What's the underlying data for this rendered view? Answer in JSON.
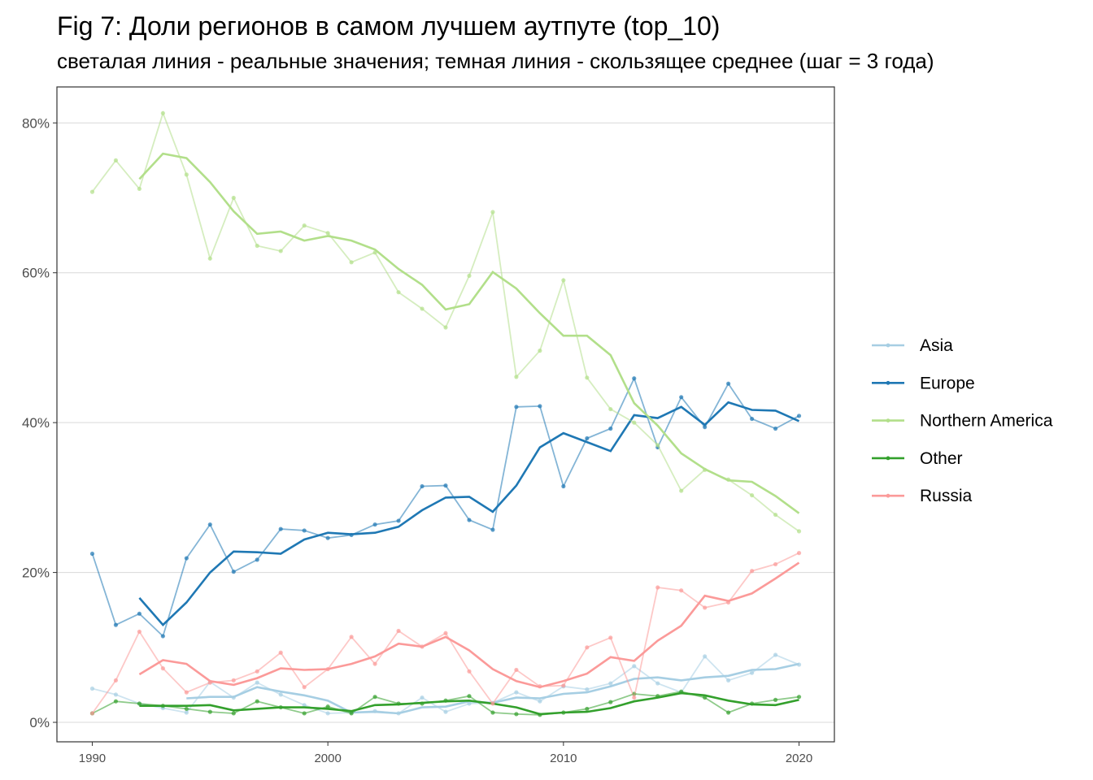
{
  "chart_data": {
    "type": "line",
    "title": "Fig 7: Доли регионов в самом лучшем аутпуте (top_10)",
    "subtitle": "светалая линия - реальные значения; темная линия - скользящее среднее (шаг = 3 года)",
    "xlim": [
      1988.5,
      2021.5
    ],
    "ylim": [
      -2.6,
      84.8
    ],
    "x_ticks": [
      1990,
      2000,
      2010,
      2020
    ],
    "x_tick_labels": [
      "1990",
      "2000",
      "2010",
      "2020"
    ],
    "y_ticks": [
      0,
      20,
      40,
      60,
      80
    ],
    "y_tick_labels": [
      "0%",
      "20%",
      "40%",
      "60%",
      "80%"
    ],
    "grid": true,
    "legend_position": "right",
    "years": [
      1990,
      1991,
      1992,
      1993,
      1994,
      1995,
      1996,
      1997,
      1998,
      1999,
      2000,
      2001,
      2002,
      2003,
      2004,
      2005,
      2006,
      2007,
      2008,
      2009,
      2010,
      2011,
      2012,
      2013,
      2014,
      2015,
      2016,
      2017,
      2018,
      2019,
      2020
    ],
    "series": [
      {
        "name": "Asia",
        "color": "#a6cee3",
        "raw": [
          4.5,
          3.7,
          2.5,
          1.9,
          1.3,
          5.4,
          3.3,
          5.3,
          3.7,
          2.3,
          1.2,
          1.3,
          1.5,
          1.2,
          3.3,
          1.4,
          2.5,
          2.6,
          4.0,
          2.8,
          4.8,
          4.4,
          5.2,
          7.5,
          5.2,
          4.0,
          8.8,
          5.6,
          6.6,
          9.0,
          7.7
        ],
        "rolling": [
          null,
          null,
          null,
          null,
          3.2,
          3.4,
          3.4,
          4.7,
          4.1,
          3.6,
          2.9,
          1.3,
          1.4,
          1.2,
          2.0,
          2.1,
          2.8,
          2.6,
          3.3,
          3.2,
          3.8,
          4.0,
          4.8,
          5.8,
          6.0,
          5.6,
          6.0,
          6.2,
          7.0,
          7.1,
          7.8
        ]
      },
      {
        "name": "Europe",
        "color": "#1f78b4",
        "raw": [
          22.5,
          13.0,
          14.5,
          11.5,
          21.9,
          26.4,
          20.1,
          21.7,
          25.8,
          25.6,
          24.6,
          25.0,
          26.4,
          26.9,
          31.5,
          31.6,
          27.0,
          25.7,
          42.1,
          42.2,
          31.5,
          37.9,
          39.2,
          45.9,
          36.7,
          43.4,
          39.4,
          45.2,
          40.5,
          39.2,
          40.9
        ],
        "rolling": [
          null,
          null,
          16.6,
          13.0,
          16.0,
          20.0,
          22.8,
          22.7,
          22.5,
          24.4,
          25.3,
          25.1,
          25.3,
          26.1,
          28.3,
          30.0,
          30.1,
          28.1,
          31.6,
          36.7,
          38.6,
          37.4,
          36.2,
          41.0,
          40.6,
          42.1,
          39.7,
          42.7,
          41.7,
          41.6,
          40.2
        ]
      },
      {
        "name": "Northern America",
        "color": "#b2df8a",
        "raw": [
          70.8,
          75.0,
          71.2,
          81.3,
          73.1,
          61.9,
          70.0,
          63.6,
          62.9,
          66.3,
          65.3,
          61.4,
          62.7,
          57.4,
          55.2,
          52.7,
          59.6,
          68.1,
          46.1,
          49.6,
          59.0,
          46.0,
          41.8,
          40.0,
          37.0,
          30.9,
          33.7,
          32.4,
          30.3,
          27.7,
          25.5
        ],
        "rolling": [
          null,
          null,
          72.5,
          75.9,
          75.3,
          72.1,
          68.2,
          65.2,
          65.5,
          64.3,
          64.9,
          64.3,
          63.1,
          60.5,
          58.4,
          55.1,
          55.8,
          60.1,
          57.9,
          54.6,
          51.6,
          51.6,
          49.0,
          42.6,
          39.6,
          35.9,
          33.8,
          32.3,
          32.1,
          30.2,
          27.9
        ]
      },
      {
        "name": "Other",
        "color": "#33a02c",
        "raw": [
          1.2,
          2.8,
          2.5,
          2.2,
          1.8,
          1.4,
          1.2,
          2.8,
          2.0,
          1.2,
          2.1,
          1.2,
          3.4,
          2.5,
          2.5,
          2.9,
          3.5,
          1.3,
          1.1,
          1.0,
          1.3,
          1.8,
          2.7,
          3.8,
          3.5,
          4.1,
          3.3,
          1.3,
          2.5,
          3.0,
          3.4
        ],
        "rolling": [
          null,
          null,
          2.2,
          2.2,
          2.2,
          2.3,
          1.6,
          1.8,
          2.0,
          2.0,
          1.8,
          1.5,
          2.3,
          2.4,
          2.6,
          2.8,
          2.9,
          2.5,
          2.0,
          1.1,
          1.3,
          1.4,
          1.9,
          2.8,
          3.3,
          3.9,
          3.6,
          2.9,
          2.4,
          2.3,
          3.0
        ]
      },
      {
        "name": "Russia",
        "color": "#fb9a99",
        "raw": [
          1.2,
          5.6,
          12.1,
          7.2,
          4.0,
          5.3,
          5.6,
          6.8,
          9.3,
          4.7,
          7.1,
          11.4,
          7.8,
          12.2,
          10.1,
          11.9,
          6.8,
          2.5,
          7.0,
          4.8,
          4.9,
          10.0,
          11.3,
          3.3,
          18.0,
          17.6,
          15.3,
          16.0,
          20.2,
          21.1,
          22.6
        ],
        "rolling": [
          null,
          null,
          6.4,
          8.3,
          7.8,
          5.5,
          5.0,
          5.9,
          7.2,
          7.0,
          7.1,
          7.8,
          8.8,
          10.5,
          10.1,
          11.4,
          9.6,
          7.1,
          5.5,
          4.7,
          5.5,
          6.5,
          8.7,
          8.2,
          10.9,
          12.9,
          16.9,
          16.2,
          17.2,
          19.2,
          21.3
        ]
      }
    ]
  }
}
